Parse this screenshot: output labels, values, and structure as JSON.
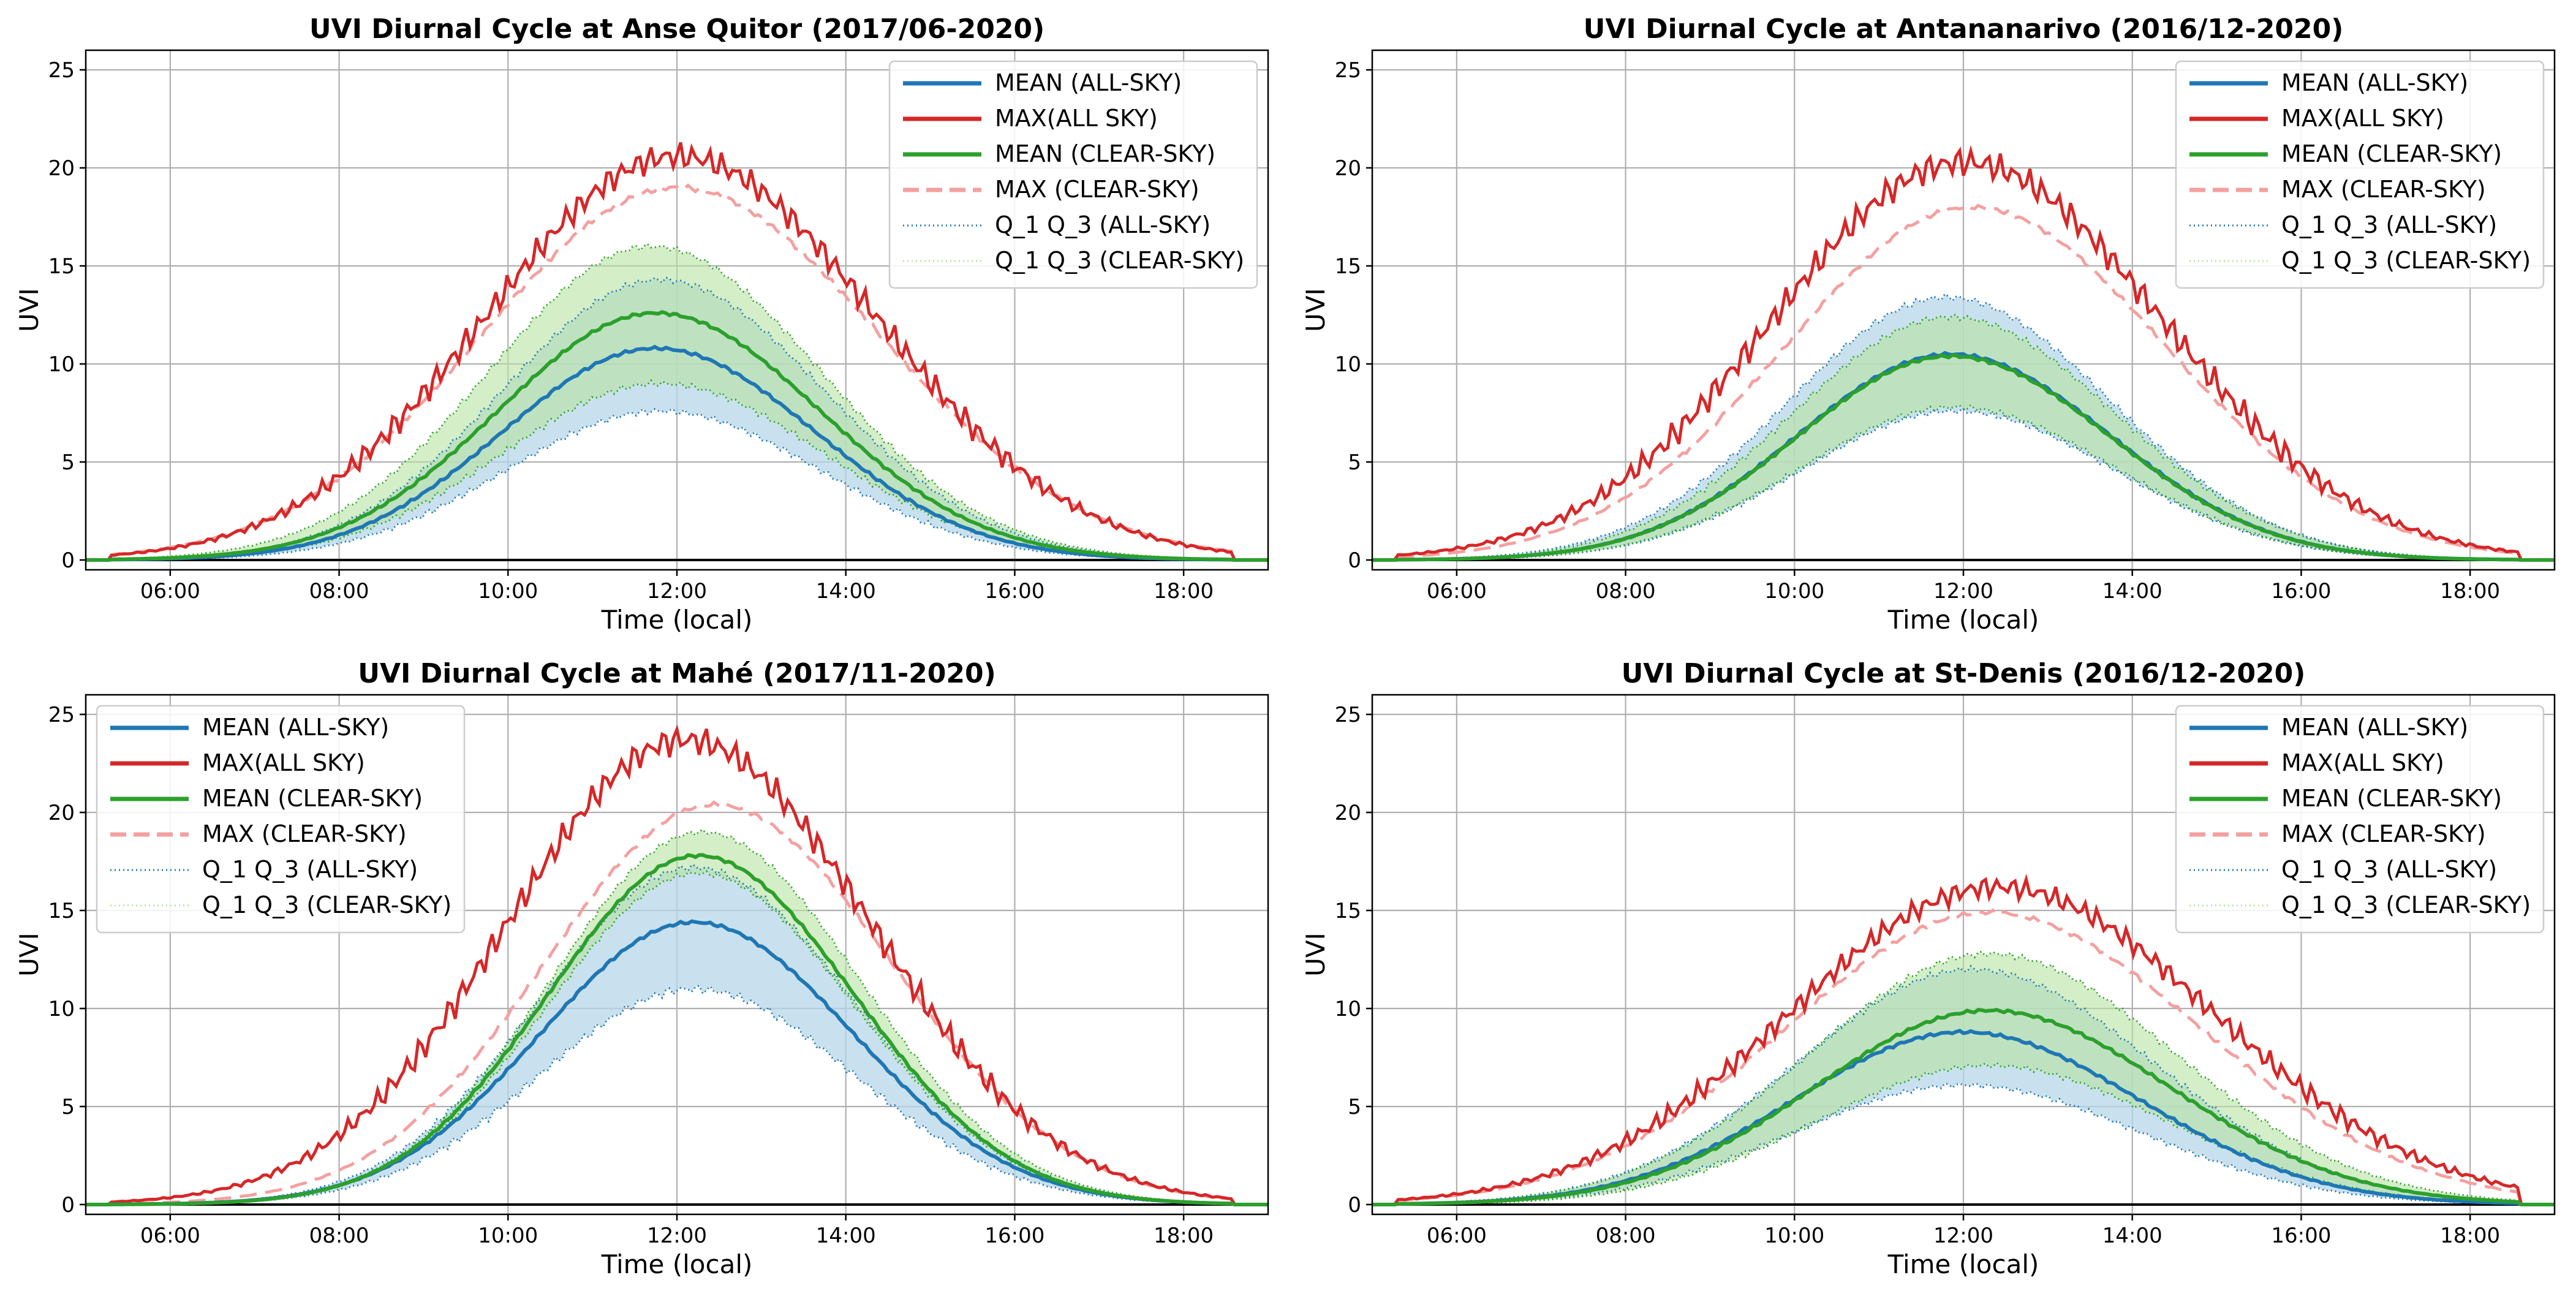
{
  "figure": {
    "background": "#ffffff"
  },
  "styles": {
    "mean_all": "#1f77b4",
    "max_all": "#d62728",
    "mean_clear": "#2ca02c",
    "max_clear": "#f4a0a0",
    "fill_all": "#b7d7e8",
    "fill_clear": "#b8e3a2"
  },
  "chart_data": [
    {
      "type": "line",
      "title": "UVI Diurnal Cycle at Anse Quitor (2017/06-2020)",
      "xlabel": "Time (local)",
      "ylabel": "UVI",
      "xlim": [
        5.0,
        19.0
      ],
      "ylim": [
        -0.5,
        26.0
      ],
      "xticks": [
        6,
        8,
        10,
        12,
        14,
        16,
        18
      ],
      "xticklabels": [
        "06:00",
        "08:00",
        "10:00",
        "12:00",
        "14:00",
        "16:00",
        "18:00"
      ],
      "yticks": [
        0,
        5,
        10,
        15,
        20,
        25
      ],
      "yticklabels": [
        "0",
        "5",
        "10",
        "15",
        "20",
        "25"
      ],
      "grid": true,
      "legend": {
        "position": "top-right",
        "entries": [
          "MEAN (ALL-SKY)",
          "MAX(ALL SKY)",
          "MEAN (CLEAR-SKY)",
          "MAX (CLEAR-SKY)",
          "Q_1 Q_3 (ALL-SKY)",
          "Q_1 Q_3 (CLEAR-SKY)"
        ]
      },
      "series": [
        {
          "name": "MEAN (ALL-SKY)",
          "peak": 10.8,
          "center": 11.75,
          "sigma": 1.85,
          "noise": 0.08
        },
        {
          "name": "MAX(ALL SKY)",
          "peak": 20.6,
          "center": 12.0,
          "sigma": 2.3,
          "noise": 0.75
        },
        {
          "name": "MEAN (CLEAR-SKY)",
          "peak": 12.6,
          "center": 11.75,
          "sigma": 1.9,
          "noise": 0.08
        },
        {
          "name": "MAX (CLEAR-SKY)",
          "peak": 19.0,
          "center": 12.0,
          "sigma": 2.35,
          "noise": 0.15
        },
        {
          "name": "Q_1 (ALL-SKY)",
          "peak": 7.6,
          "center": 11.8,
          "sigma": 1.85,
          "noise": 0.18
        },
        {
          "name": "Q_3 (ALL-SKY)",
          "peak": 14.3,
          "center": 11.8,
          "sigma": 1.9,
          "noise": 0.18
        },
        {
          "name": "Q_1 (CLEAR-SKY)",
          "peak": 9.0,
          "center": 11.8,
          "sigma": 1.9,
          "noise": 0.18
        },
        {
          "name": "Q_3 (CLEAR-SKY)",
          "peak": 16.0,
          "center": 11.7,
          "sigma": 1.95,
          "noise": 0.18
        }
      ]
    },
    {
      "type": "line",
      "title": "UVI Diurnal Cycle at Antananarivo (2016/12-2020)",
      "xlabel": "Time (local)",
      "ylabel": "UVI",
      "xlim": [
        5.0,
        19.0
      ],
      "ylim": [
        -0.5,
        26.0
      ],
      "xticks": [
        6,
        8,
        10,
        12,
        14,
        16,
        18
      ],
      "xticklabels": [
        "06:00",
        "08:00",
        "10:00",
        "12:00",
        "14:00",
        "16:00",
        "18:00"
      ],
      "yticks": [
        0,
        5,
        10,
        15,
        20,
        25
      ],
      "yticklabels": [
        "0",
        "5",
        "10",
        "15",
        "20",
        "25"
      ],
      "grid": true,
      "legend": {
        "position": "top-right",
        "entries": [
          "MEAN (ALL-SKY)",
          "MAX(ALL SKY)",
          "MEAN (CLEAR-SKY)",
          "MAX (CLEAR-SKY)",
          "Q_1 Q_3 (ALL-SKY)",
          "Q_1 Q_3 (CLEAR-SKY)"
        ]
      },
      "series": [
        {
          "name": "MEAN (ALL-SKY)",
          "peak": 10.5,
          "center": 11.85,
          "sigma": 1.85,
          "noise": 0.08
        },
        {
          "name": "MAX(ALL SKY)",
          "peak": 20.3,
          "center": 12.0,
          "sigma": 2.3,
          "noise": 0.8
        },
        {
          "name": "MEAN (CLEAR-SKY)",
          "peak": 10.4,
          "center": 11.85,
          "sigma": 1.85,
          "noise": 0.08
        },
        {
          "name": "MAX (CLEAR-SKY)",
          "peak": 18.0,
          "center": 12.1,
          "sigma": 2.25,
          "noise": 0.12
        },
        {
          "name": "Q_1 (ALL-SKY)",
          "peak": 7.6,
          "center": 11.9,
          "sigma": 1.85,
          "noise": 0.15
        },
        {
          "name": "Q_3 (ALL-SKY)",
          "peak": 13.4,
          "center": 11.8,
          "sigma": 1.9,
          "noise": 0.2
        },
        {
          "name": "Q_1 (CLEAR-SKY)",
          "peak": 7.8,
          "center": 11.9,
          "sigma": 1.85,
          "noise": 0.15
        },
        {
          "name": "Q_3 (CLEAR-SKY)",
          "peak": 12.4,
          "center": 11.85,
          "sigma": 1.9,
          "noise": 0.18
        }
      ]
    },
    {
      "type": "line",
      "title": "UVI Diurnal Cycle at Mahé (2017/11-2020)",
      "xlabel": "Time (local)",
      "ylabel": "UVI",
      "xlim": [
        5.0,
        19.0
      ],
      "ylim": [
        -0.5,
        26.0
      ],
      "xticks": [
        6,
        8,
        10,
        12,
        14,
        16,
        18
      ],
      "xticklabels": [
        "06:00",
        "08:00",
        "10:00",
        "12:00",
        "14:00",
        "16:00",
        "18:00"
      ],
      "yticks": [
        0,
        5,
        10,
        15,
        20,
        25
      ],
      "yticklabels": [
        "0",
        "5",
        "10",
        "15",
        "20",
        "25"
      ],
      "grid": true,
      "legend": {
        "position": "top-left",
        "entries": [
          "MEAN (ALL-SKY)",
          "MAX(ALL SKY)",
          "MEAN (CLEAR-SKY)",
          "MAX (CLEAR-SKY)",
          "Q_1 Q_3 (ALL-SKY)",
          "Q_1 Q_3 (CLEAR-SKY)"
        ]
      },
      "series": [
        {
          "name": "MEAN (ALL-SKY)",
          "peak": 14.4,
          "center": 12.2,
          "sigma": 1.85,
          "noise": 0.08
        },
        {
          "name": "MAX(ALL SKY)",
          "peak": 23.7,
          "center": 12.1,
          "sigma": 2.15,
          "noise": 0.8
        },
        {
          "name": "MEAN (CLEAR-SKY)",
          "peak": 17.8,
          "center": 12.25,
          "sigma": 1.8,
          "noise": 0.08
        },
        {
          "name": "MAX (CLEAR-SKY)",
          "peak": 20.4,
          "center": 12.45,
          "sigma": 2.05,
          "noise": 0.12
        },
        {
          "name": "Q_1 (ALL-SKY)",
          "peak": 11.0,
          "center": 12.2,
          "sigma": 1.85,
          "noise": 0.25
        },
        {
          "name": "Q_3 (ALL-SKY)",
          "peak": 17.2,
          "center": 12.2,
          "sigma": 1.85,
          "noise": 0.2
        },
        {
          "name": "Q_1 (CLEAR-SKY)",
          "peak": 16.9,
          "center": 12.25,
          "sigma": 1.8,
          "noise": 0.15
        },
        {
          "name": "Q_3 (CLEAR-SKY)",
          "peak": 19.0,
          "center": 12.3,
          "sigma": 1.82,
          "noise": 0.15
        }
      ]
    },
    {
      "type": "line",
      "title": "UVI Diurnal Cycle at St-Denis (2016/12-2020)",
      "xlabel": "Time (local)",
      "ylabel": "UVI",
      "xlim": [
        5.0,
        19.0
      ],
      "ylim": [
        -0.5,
        26.0
      ],
      "xticks": [
        6,
        8,
        10,
        12,
        14,
        16,
        18
      ],
      "xticklabels": [
        "06:00",
        "08:00",
        "10:00",
        "12:00",
        "14:00",
        "16:00",
        "18:00"
      ],
      "yticks": [
        0,
        5,
        10,
        15,
        20,
        25
      ],
      "yticklabels": [
        "0",
        "5",
        "10",
        "15",
        "20",
        "25"
      ],
      "grid": true,
      "legend": {
        "position": "top-right",
        "entries": [
          "MEAN (ALL-SKY)",
          "MAX(ALL SKY)",
          "MEAN (CLEAR-SKY)",
          "MAX (CLEAR-SKY)",
          "Q_1 Q_3 (ALL-SKY)",
          "Q_1 Q_3 (CLEAR-SKY)"
        ]
      },
      "series": [
        {
          "name": "MEAN (ALL-SKY)",
          "peak": 8.8,
          "center": 12.0,
          "sigma": 2.05,
          "noise": 0.08
        },
        {
          "name": "MAX(ALL SKY)",
          "peak": 16.2,
          "center": 12.4,
          "sigma": 2.5,
          "noise": 0.6
        },
        {
          "name": "MEAN (CLEAR-SKY)",
          "peak": 9.9,
          "center": 12.3,
          "sigma": 2.1,
          "noise": 0.08
        },
        {
          "name": "MAX (CLEAR-SKY)",
          "peak": 14.9,
          "center": 12.3,
          "sigma": 2.45,
          "noise": 0.12
        },
        {
          "name": "Q_1 (ALL-SKY)",
          "peak": 6.1,
          "center": 12.0,
          "sigma": 2.05,
          "noise": 0.15
        },
        {
          "name": "Q_3 (ALL-SKY)",
          "peak": 12.0,
          "center": 12.1,
          "sigma": 2.1,
          "noise": 0.18
        },
        {
          "name": "Q_1 (CLEAR-SKY)",
          "peak": 7.1,
          "center": 12.3,
          "sigma": 2.05,
          "noise": 0.15
        },
        {
          "name": "Q_3 (CLEAR-SKY)",
          "peak": 12.8,
          "center": 12.3,
          "sigma": 2.15,
          "noise": 0.18
        }
      ]
    }
  ]
}
